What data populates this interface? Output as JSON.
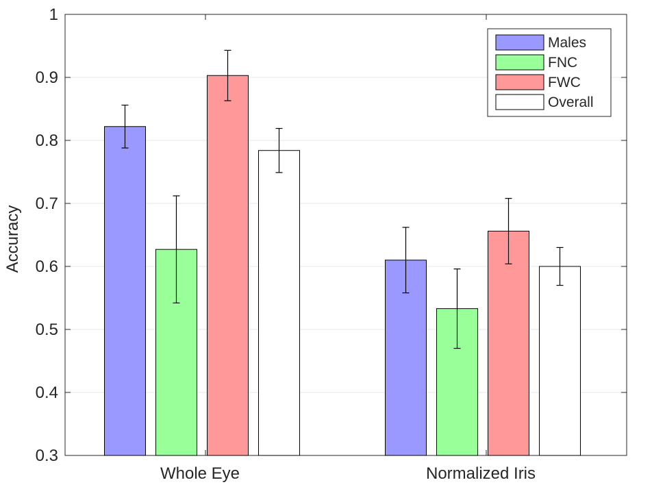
{
  "chart_data": {
    "type": "bar",
    "title": "",
    "xlabel": "",
    "ylabel": "Accuracy",
    "ylim": [
      0.3,
      1.0
    ],
    "yticks": [
      0.3,
      0.4,
      0.5,
      0.6,
      0.7,
      0.8,
      0.9,
      1.0
    ],
    "ytick_labels": [
      "0.3",
      "0.4",
      "0.5",
      "0.6",
      "0.7",
      "0.8",
      "0.9",
      "1"
    ],
    "grid": true,
    "legend_position": "top-right",
    "categories": [
      "Whole Eye",
      "Normalized Iris"
    ],
    "series": [
      {
        "name": "Males",
        "color": "#9999ff",
        "values": [
          0.822,
          0.61
        ],
        "error": [
          0.034,
          0.052
        ]
      },
      {
        "name": "FNC",
        "color": "#99ff99",
        "values": [
          0.627,
          0.533
        ],
        "error": [
          0.085,
          0.063
        ]
      },
      {
        "name": "FWC",
        "color": "#ff9999",
        "values": [
          0.903,
          0.656
        ],
        "error": [
          0.04,
          0.052
        ]
      },
      {
        "name": "Overall",
        "color": "#ffffff",
        "values": [
          0.784,
          0.6
        ],
        "error": [
          0.035,
          0.03
        ]
      }
    ]
  }
}
